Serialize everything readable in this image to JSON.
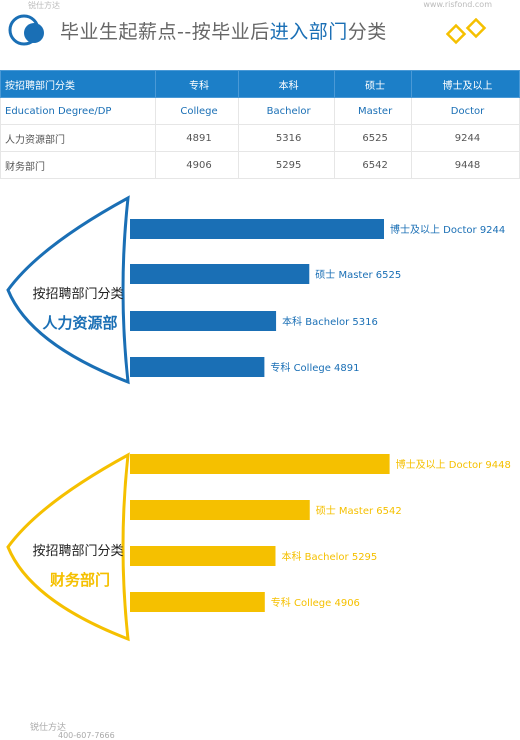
{
  "header": {
    "watermark_top": "锐仕方达",
    "site": "www.risfond.com",
    "title_main": "毕业生起薪点--按毕业后",
    "title_highlight": "进入部门",
    "title_tail": "分类"
  },
  "table": {
    "headers": [
      "按招聘部门分类",
      "专科",
      "本科",
      "硕士",
      "博士及以上"
    ],
    "rows": [
      [
        "Education Degree/DP",
        "College",
        "Bachelor",
        "Master",
        "Doctor"
      ],
      [
        "人力资源部门",
        "4891",
        "5316",
        "6525",
        "9244"
      ],
      [
        "财务部门",
        "4906",
        "5295",
        "6542",
        "9448"
      ]
    ]
  },
  "colors": {
    "blue": "#1a6fb5",
    "yellow": "#f5c000"
  },
  "chart_data": [
    {
      "type": "bar",
      "orientation": "horizontal",
      "label_line1": "按招聘部门分类",
      "label_line2": "人力资源部",
      "categories": [
        "博士及以上 Doctor",
        "硕士 Master",
        "本科 Bachelor",
        "专科 College"
      ],
      "values": [
        9244,
        6525,
        5316,
        4891
      ]
    },
    {
      "type": "bar",
      "orientation": "horizontal",
      "label_line1": "按招聘部门分类",
      "label_line2": "财务部门",
      "categories": [
        "博士及以上 Doctor",
        "硕士 Master",
        "本科 Bachelor",
        "专科 College"
      ],
      "values": [
        9448,
        6542,
        5295,
        4906
      ]
    }
  ],
  "footer": {
    "watermark": "锐仕方达",
    "phone": "400-607-7666"
  }
}
